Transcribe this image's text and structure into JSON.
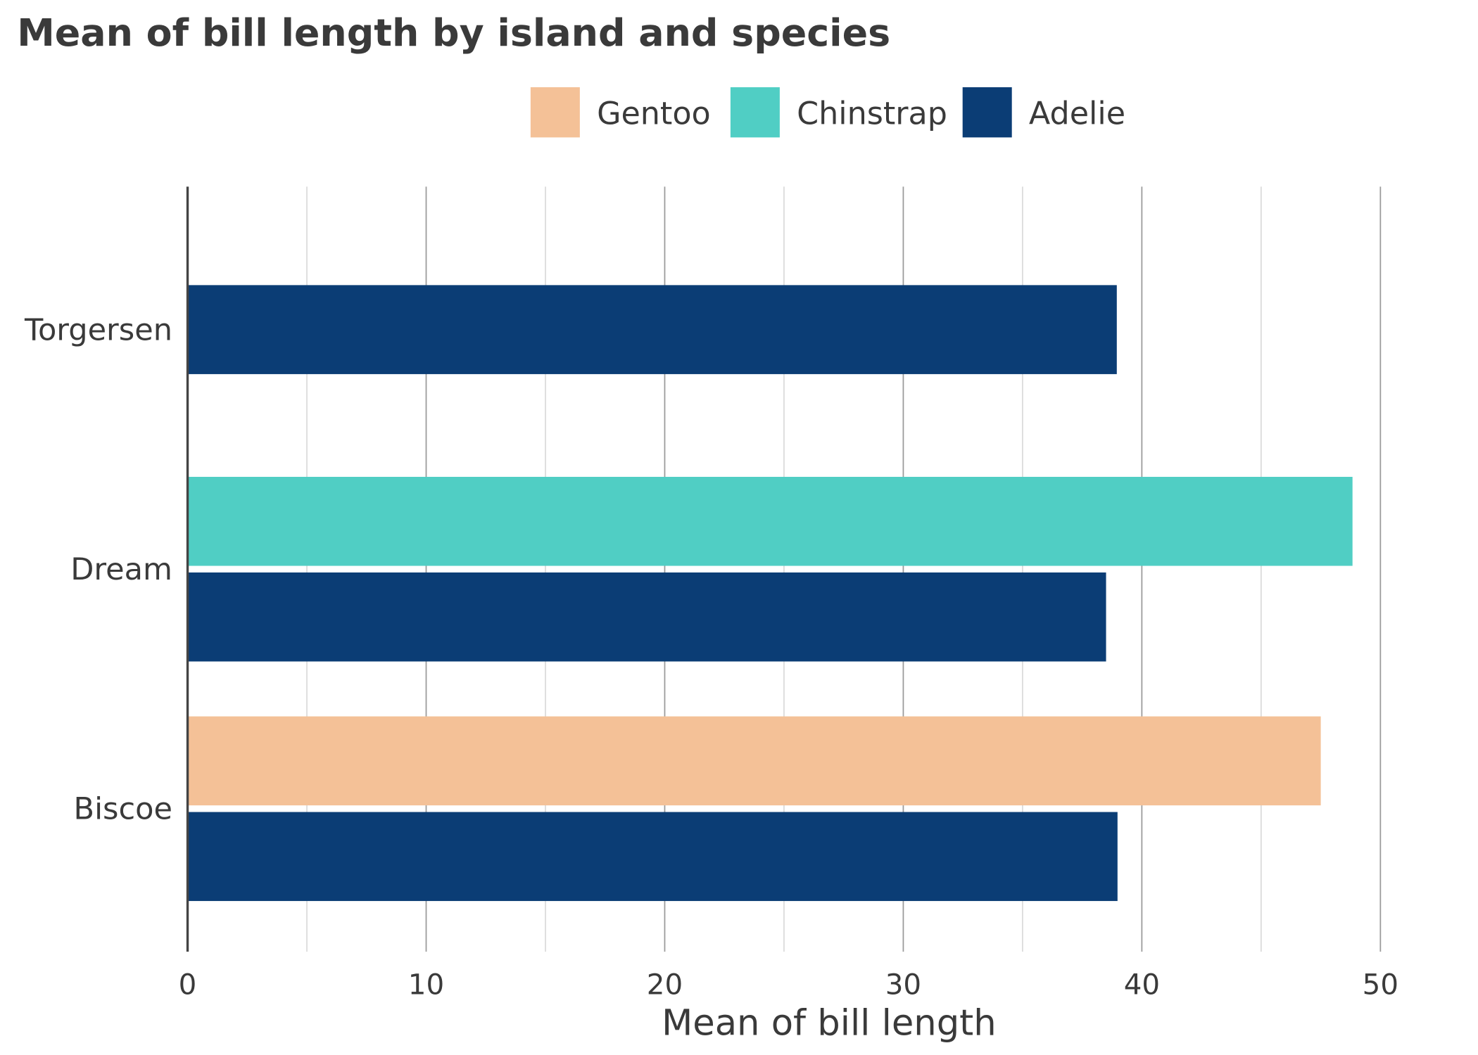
{
  "chart_data": {
    "type": "bar",
    "orientation": "horizontal",
    "title": "Mean of bill length by island and species",
    "xlabel": "Mean of bill length",
    "ylabel": "",
    "categories": [
      "Torgersen",
      "Dream",
      "Biscoe"
    ],
    "xlim": [
      0,
      52
    ],
    "xticks": [
      0,
      10,
      20,
      30,
      40,
      50
    ],
    "grid": true,
    "legend_position": "top",
    "legend": [
      "Gentoo",
      "Chinstrap",
      "Adelie"
    ],
    "series": [
      {
        "name": "Gentoo",
        "color": "#F4C197",
        "values": [
          null,
          null,
          47.5
        ]
      },
      {
        "name": "Chinstrap",
        "color": "#50CEC4",
        "values": [
          null,
          48.83,
          null
        ]
      },
      {
        "name": "Adelie",
        "color": "#0B3D75",
        "values": [
          38.95,
          38.5,
          38.98
        ]
      }
    ]
  }
}
